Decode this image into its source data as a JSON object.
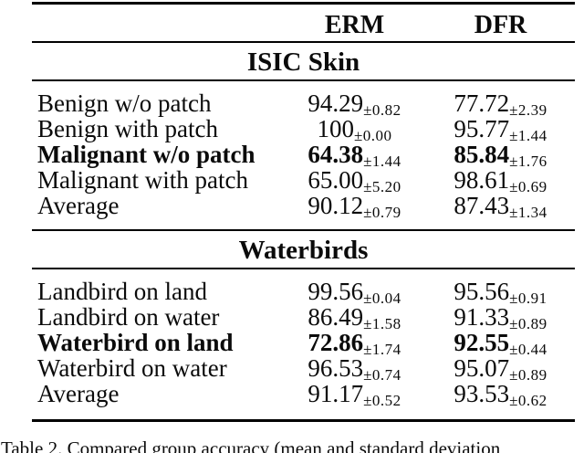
{
  "table": {
    "col_erm": "ERM",
    "col_dfr": "DFR",
    "sections": [
      {
        "title": "ISIC Skin",
        "rows": [
          {
            "label": "Benign w/o patch",
            "bold": false,
            "erm": {
              "val": "94.29",
              "pm": "±0.82"
            },
            "dfr": {
              "val": "77.72",
              "pm": "±2.39"
            }
          },
          {
            "label": "Benign with patch",
            "bold": false,
            "erm": {
              "val": "100",
              "pm": "±0.00"
            },
            "dfr": {
              "val": "95.77",
              "pm": "±1.44"
            }
          },
          {
            "label": "Malignant w/o patch",
            "bold": true,
            "erm": {
              "val": "64.38",
              "pm": "±1.44"
            },
            "dfr": {
              "val": "85.84",
              "pm": "±1.76"
            }
          },
          {
            "label": "Malignant with patch",
            "bold": false,
            "erm": {
              "val": "65.00",
              "pm": "±5.20"
            },
            "dfr": {
              "val": "98.61",
              "pm": "±0.69"
            }
          },
          {
            "label": "Average",
            "bold": false,
            "erm": {
              "val": "90.12",
              "pm": "±0.79"
            },
            "dfr": {
              "val": "87.43",
              "pm": "±1.34"
            }
          }
        ]
      },
      {
        "title": "Waterbirds",
        "rows": [
          {
            "label": "Landbird on land",
            "bold": false,
            "erm": {
              "val": "99.56",
              "pm": "±0.04"
            },
            "dfr": {
              "val": "95.56",
              "pm": "±0.91"
            }
          },
          {
            "label": "Landbird on water",
            "bold": false,
            "erm": {
              "val": "86.49",
              "pm": "±1.58"
            },
            "dfr": {
              "val": "91.33",
              "pm": "±0.89"
            }
          },
          {
            "label": "Waterbird on land",
            "bold": true,
            "erm": {
              "val": "72.86",
              "pm": "±1.74"
            },
            "dfr": {
              "val": "92.55",
              "pm": "±0.44"
            }
          },
          {
            "label": "Waterbird on water",
            "bold": false,
            "erm": {
              "val": "96.53",
              "pm": "±0.74"
            },
            "dfr": {
              "val": "95.07",
              "pm": "±0.89"
            }
          },
          {
            "label": "Average",
            "bold": false,
            "erm": {
              "val": "91.17",
              "pm": "±0.52"
            },
            "dfr": {
              "val": "93.53",
              "pm": "±0.62"
            }
          }
        ]
      }
    ]
  },
  "caption": "Table 2. Compared group accuracy (mean and standard deviation"
}
